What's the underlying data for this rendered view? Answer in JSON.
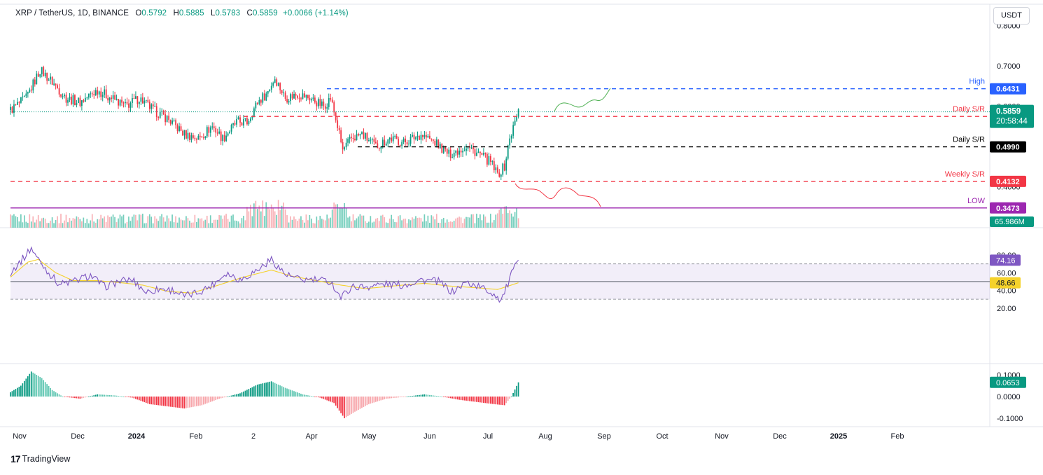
{
  "header": {
    "symbol": "XRP / TetherUS, 1D, BINANCE",
    "o_label": "O",
    "o_value": "0.5792",
    "h_label": "H",
    "h_value": "0.5885",
    "l_label": "L",
    "l_value": "0.5783",
    "c_label": "C",
    "c_value": "0.5859",
    "change": "+0.0066 (+1.14%)"
  },
  "currency_button": "USDT",
  "branding": {
    "logo_text": "TradingView",
    "logo_mark": "17"
  },
  "colors": {
    "up": "#089981",
    "down": "#f23645",
    "high_line": "#2962ff",
    "sr_line": "#f23645",
    "black_line": "#000000",
    "low_line": "#9c27b0",
    "rsi": "#7e57c2",
    "rsi_ma": "#f5d22b",
    "projection_up": "#4caf50",
    "projection_down": "#f23645"
  },
  "chart_data": [
    {
      "type": "candlestick",
      "name": "price",
      "title": "XRP / TetherUS, 1D, BINANCE",
      "ylim": [
        0.33,
        0.78
      ],
      "ytick_labels": [
        "0.8000",
        "0.7000",
        "0.6000",
        "0.4000"
      ],
      "x_tick_labels": [
        "Nov",
        "Dec",
        "2024",
        "Feb",
        "2",
        "Apr",
        "May",
        "Jun",
        "Jul",
        "Aug",
        "Sep",
        "Oct",
        "Nov",
        "Dec",
        "2025",
        "Feb"
      ],
      "anchors": [
        {
          "t": 0,
          "v": 0.59
        },
        {
          "t": 9,
          "v": 0.62
        },
        {
          "t": 17,
          "v": 0.69
        },
        {
          "t": 24,
          "v": 0.66
        },
        {
          "t": 32,
          "v": 0.62
        },
        {
          "t": 40,
          "v": 0.61
        },
        {
          "t": 50,
          "v": 0.64
        },
        {
          "t": 58,
          "v": 0.62
        },
        {
          "t": 66,
          "v": 0.6
        },
        {
          "t": 74,
          "v": 0.62
        },
        {
          "t": 82,
          "v": 0.59
        },
        {
          "t": 90,
          "v": 0.57
        },
        {
          "t": 100,
          "v": 0.53
        },
        {
          "t": 108,
          "v": 0.52
        },
        {
          "t": 116,
          "v": 0.55
        },
        {
          "t": 122,
          "v": 0.52
        },
        {
          "t": 130,
          "v": 0.56
        },
        {
          "t": 136,
          "v": 0.56
        },
        {
          "t": 142,
          "v": 0.61
        },
        {
          "t": 147,
          "v": 0.63
        },
        {
          "t": 152,
          "v": 0.67
        },
        {
          "t": 158,
          "v": 0.62
        },
        {
          "t": 165,
          "v": 0.63
        },
        {
          "t": 172,
          "v": 0.62
        },
        {
          "t": 180,
          "v": 0.6
        },
        {
          "t": 184,
          "v": 0.62
        },
        {
          "t": 188,
          "v": 0.55
        },
        {
          "t": 191,
          "v": 0.49
        },
        {
          "t": 196,
          "v": 0.52
        },
        {
          "t": 202,
          "v": 0.53
        },
        {
          "t": 210,
          "v": 0.5
        },
        {
          "t": 218,
          "v": 0.52
        },
        {
          "t": 226,
          "v": 0.51
        },
        {
          "t": 236,
          "v": 0.53
        },
        {
          "t": 244,
          "v": 0.51
        },
        {
          "t": 252,
          "v": 0.48
        },
        {
          "t": 262,
          "v": 0.5
        },
        {
          "t": 270,
          "v": 0.48
        },
        {
          "t": 276,
          "v": 0.46
        },
        {
          "t": 280,
          "v": 0.43
        },
        {
          "t": 284,
          "v": 0.45
        },
        {
          "t": 287,
          "v": 0.52
        },
        {
          "t": 290,
          "v": 0.56
        },
        {
          "t": 292,
          "v": 0.586
        }
      ],
      "levels": [
        {
          "label": "High",
          "value": 0.6431,
          "tag": "0.6431",
          "color": "#2962ff"
        },
        {
          "label": "Daily S/R",
          "value": 0.5745,
          "tag": "0.5745",
          "color": "#f23645"
        },
        {
          "label": "Daily S/R",
          "value": 0.499,
          "tag": "0.4990",
          "color": "#000000"
        },
        {
          "label": "Weekly S/R",
          "value": 0.4132,
          "tag": "0.4132",
          "color": "#f23645"
        },
        {
          "label": "LOW",
          "value": 0.3473,
          "tag": "0.3473",
          "color": "#9c27b0"
        }
      ],
      "last_price": {
        "value": 0.5859,
        "tag": "0.5859",
        "countdown": "20:58:44"
      },
      "volume_tag": "65.986M"
    },
    {
      "type": "line",
      "name": "RSI",
      "ylim": [
        18,
        92
      ],
      "ytick_labels": [
        "80.00",
        "60.00",
        "40.00",
        "20.00"
      ],
      "overbought": 70,
      "oversold": 30,
      "midline": 50,
      "rsi_last": {
        "value": 74.16,
        "tag": "74.16"
      },
      "ma_last": {
        "value": 48.66,
        "tag": "48.66"
      },
      "anchors": [
        {
          "t": 0,
          "v": 60
        },
        {
          "t": 8,
          "v": 78
        },
        {
          "t": 12,
          "v": 88
        },
        {
          "t": 16,
          "v": 75
        },
        {
          "t": 22,
          "v": 60
        },
        {
          "t": 28,
          "v": 47
        },
        {
          "t": 36,
          "v": 50
        },
        {
          "t": 46,
          "v": 57
        },
        {
          "t": 54,
          "v": 44
        },
        {
          "t": 62,
          "v": 50
        },
        {
          "t": 70,
          "v": 52
        },
        {
          "t": 78,
          "v": 38
        },
        {
          "t": 86,
          "v": 42
        },
        {
          "t": 94,
          "v": 40
        },
        {
          "t": 100,
          "v": 33
        },
        {
          "t": 108,
          "v": 38
        },
        {
          "t": 116,
          "v": 46
        },
        {
          "t": 124,
          "v": 60
        },
        {
          "t": 132,
          "v": 52
        },
        {
          "t": 142,
          "v": 63
        },
        {
          "t": 150,
          "v": 75
        },
        {
          "t": 158,
          "v": 58
        },
        {
          "t": 166,
          "v": 52
        },
        {
          "t": 174,
          "v": 52
        },
        {
          "t": 184,
          "v": 50
        },
        {
          "t": 190,
          "v": 32
        },
        {
          "t": 196,
          "v": 44
        },
        {
          "t": 204,
          "v": 44
        },
        {
          "t": 214,
          "v": 47
        },
        {
          "t": 226,
          "v": 46
        },
        {
          "t": 236,
          "v": 52
        },
        {
          "t": 246,
          "v": 50
        },
        {
          "t": 254,
          "v": 38
        },
        {
          "t": 262,
          "v": 49
        },
        {
          "t": 270,
          "v": 44
        },
        {
          "t": 278,
          "v": 36
        },
        {
          "t": 282,
          "v": 29
        },
        {
          "t": 286,
          "v": 47
        },
        {
          "t": 290,
          "v": 70
        },
        {
          "t": 292,
          "v": 74.16
        }
      ],
      "ma_anchors": [
        {
          "t": 0,
          "v": 55
        },
        {
          "t": 10,
          "v": 72
        },
        {
          "t": 16,
          "v": 75
        },
        {
          "t": 26,
          "v": 60
        },
        {
          "t": 36,
          "v": 51
        },
        {
          "t": 50,
          "v": 51
        },
        {
          "t": 62,
          "v": 49
        },
        {
          "t": 76,
          "v": 46
        },
        {
          "t": 90,
          "v": 39
        },
        {
          "t": 104,
          "v": 37
        },
        {
          "t": 118,
          "v": 45
        },
        {
          "t": 134,
          "v": 55
        },
        {
          "t": 150,
          "v": 63
        },
        {
          "t": 162,
          "v": 56
        },
        {
          "t": 176,
          "v": 51
        },
        {
          "t": 190,
          "v": 46
        },
        {
          "t": 204,
          "v": 42
        },
        {
          "t": 220,
          "v": 45
        },
        {
          "t": 238,
          "v": 48
        },
        {
          "t": 252,
          "v": 45
        },
        {
          "t": 268,
          "v": 43
        },
        {
          "t": 280,
          "v": 41
        },
        {
          "t": 292,
          "v": 48.66
        }
      ]
    },
    {
      "type": "bar",
      "name": "oscillator histogram",
      "ylim": [
        -0.125,
        0.115
      ],
      "ytick_labels": [
        "0.1000",
        "0.0000",
        "-0.1000"
      ],
      "last": {
        "value": 0.0653,
        "tag": "0.0653"
      },
      "anchors": [
        {
          "t": 0,
          "v": 0.02
        },
        {
          "t": 6,
          "v": 0.05
        },
        {
          "t": 12,
          "v": 0.115
        },
        {
          "t": 18,
          "v": 0.085
        },
        {
          "t": 24,
          "v": 0.03
        },
        {
          "t": 30,
          "v": 0.0
        },
        {
          "t": 40,
          "v": -0.01
        },
        {
          "t": 50,
          "v": 0.01
        },
        {
          "t": 60,
          "v": 0.005
        },
        {
          "t": 70,
          "v": -0.005
        },
        {
          "t": 80,
          "v": -0.035
        },
        {
          "t": 90,
          "v": -0.045
        },
        {
          "t": 100,
          "v": -0.055
        },
        {
          "t": 110,
          "v": -0.04
        },
        {
          "t": 120,
          "v": -0.01
        },
        {
          "t": 132,
          "v": 0.015
        },
        {
          "t": 142,
          "v": 0.055
        },
        {
          "t": 150,
          "v": 0.07
        },
        {
          "t": 158,
          "v": 0.04
        },
        {
          "t": 168,
          "v": 0.01
        },
        {
          "t": 178,
          "v": -0.005
        },
        {
          "t": 186,
          "v": -0.03
        },
        {
          "t": 192,
          "v": -0.1
        },
        {
          "t": 198,
          "v": -0.07
        },
        {
          "t": 206,
          "v": -0.035
        },
        {
          "t": 216,
          "v": -0.01
        },
        {
          "t": 228,
          "v": 0.0
        },
        {
          "t": 238,
          "v": 0.01
        },
        {
          "t": 248,
          "v": 0.0
        },
        {
          "t": 258,
          "v": -0.015
        },
        {
          "t": 268,
          "v": -0.025
        },
        {
          "t": 278,
          "v": -0.035
        },
        {
          "t": 284,
          "v": -0.04
        },
        {
          "t": 288,
          "v": 0.0
        },
        {
          "t": 292,
          "v": 0.0653
        }
      ]
    }
  ]
}
